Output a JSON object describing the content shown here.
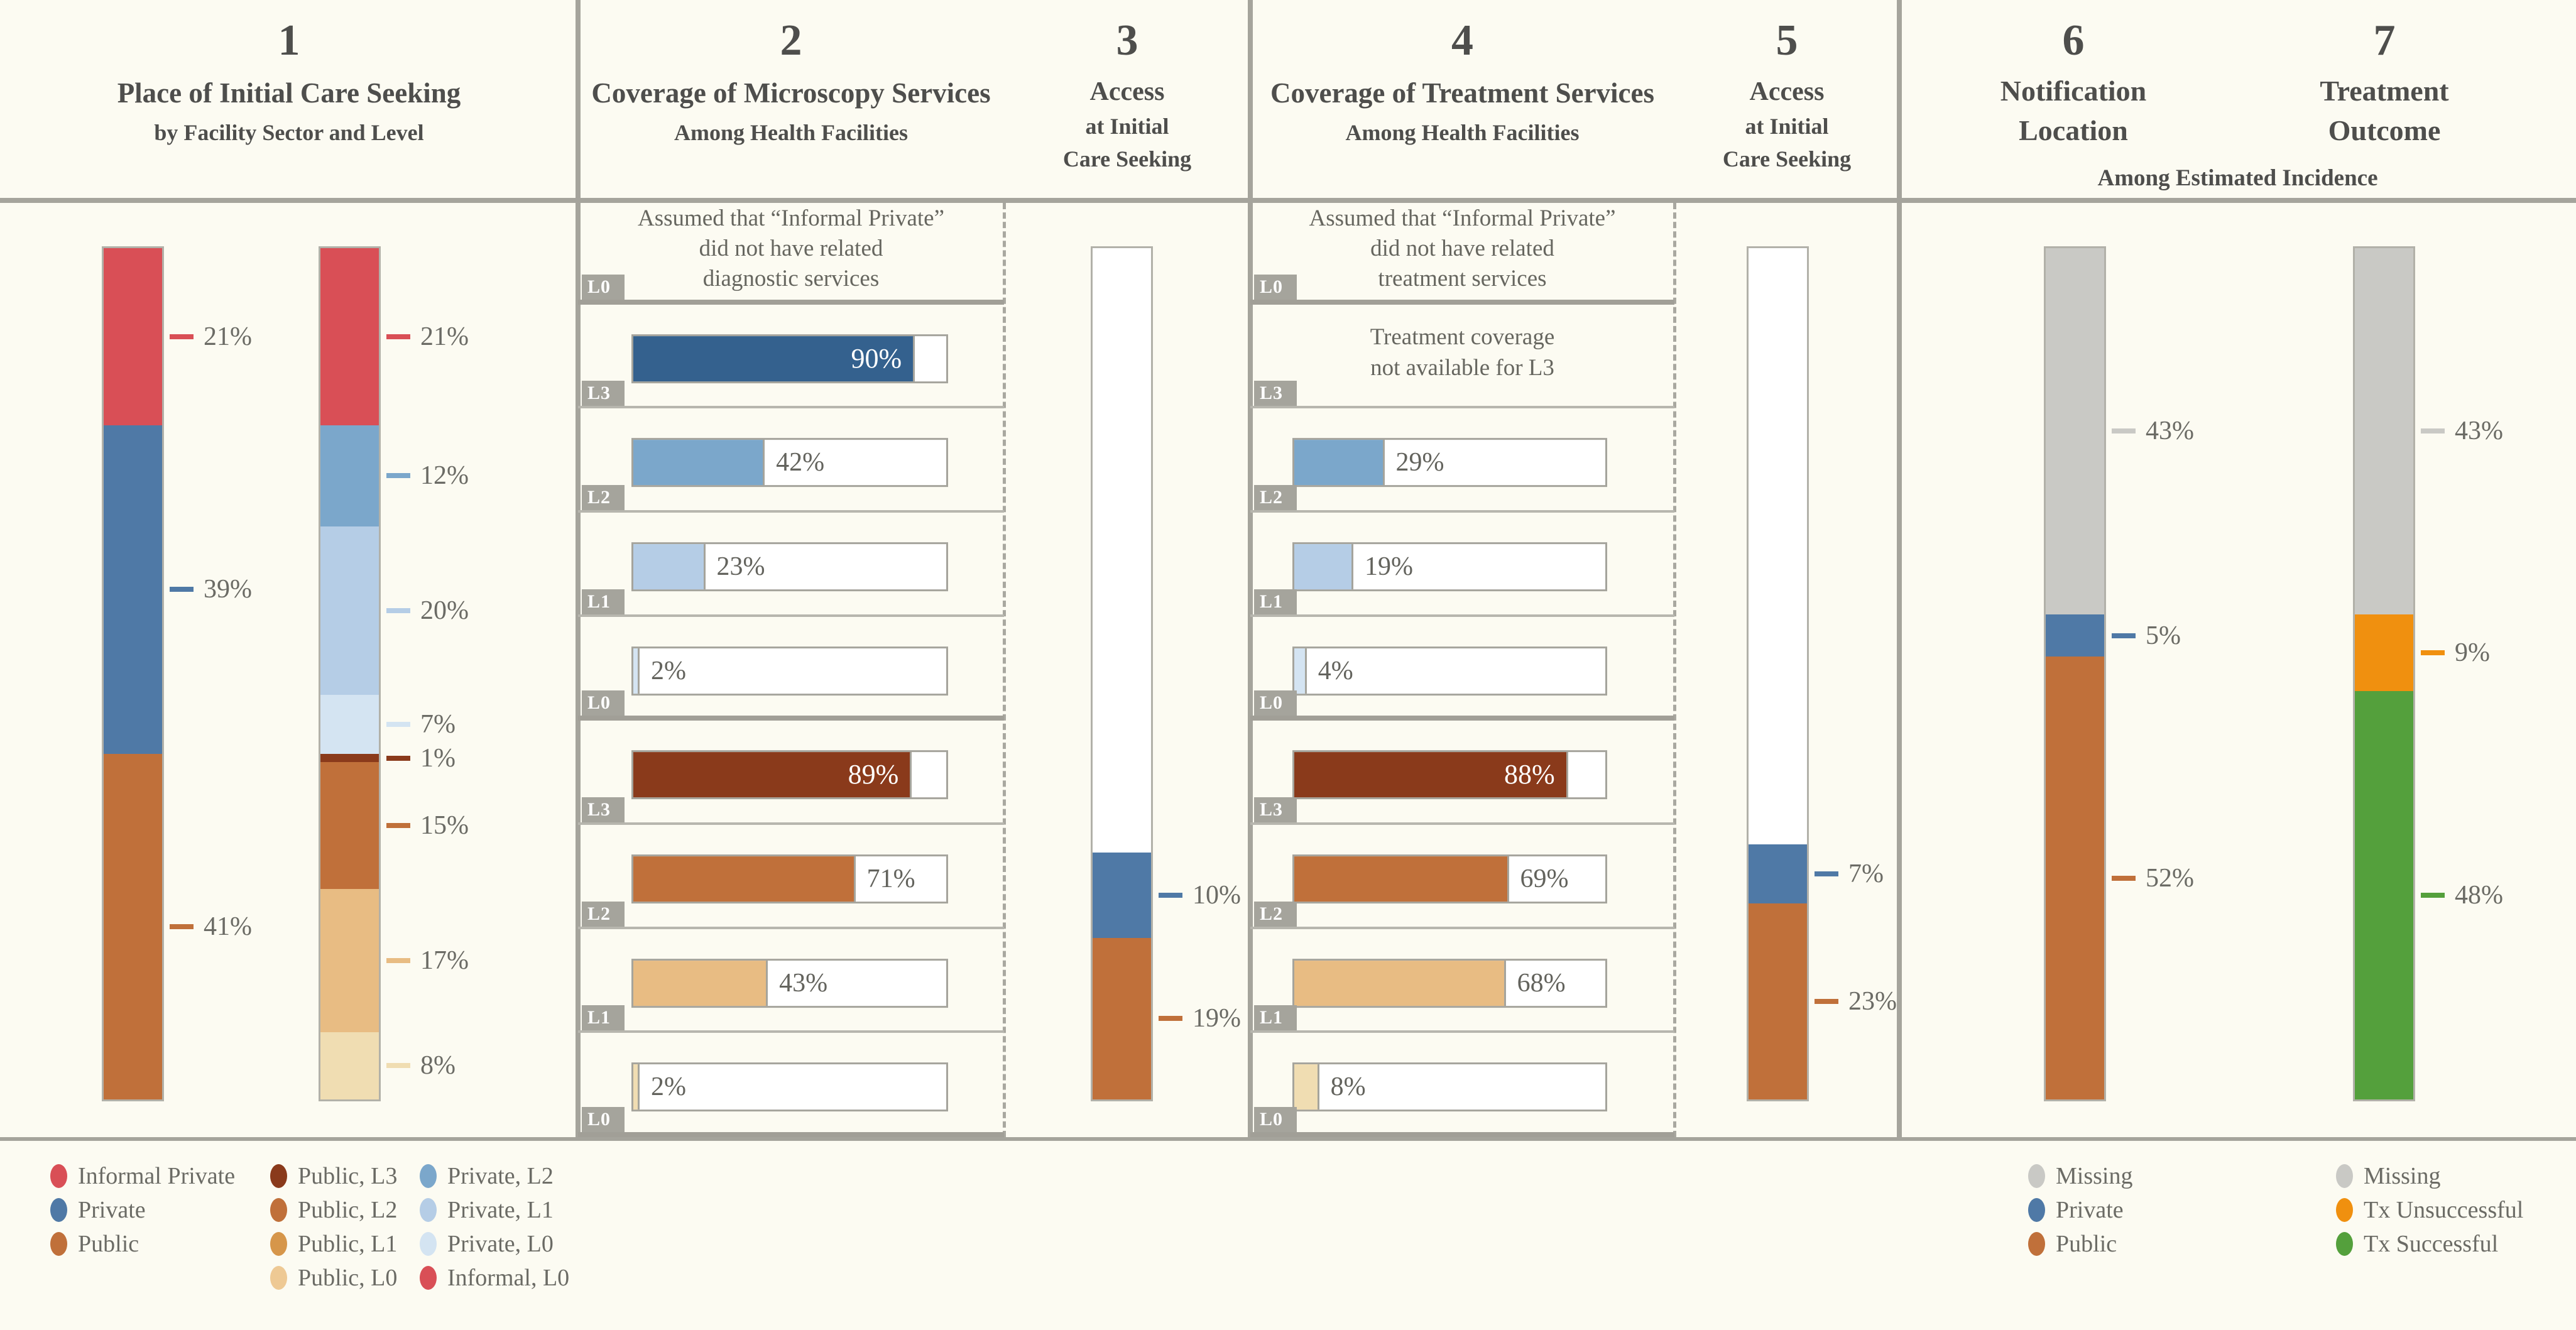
{
  "headers": {
    "p1": {
      "num": "1",
      "title": "Place of Initial Care Seeking",
      "subtitle": "by Facility Sector and Level"
    },
    "p2": {
      "num": "2",
      "title": "Coverage of Microscopy Services",
      "subtitle": "Among Health Facilities"
    },
    "p3": {
      "num": "3",
      "title": "Access",
      "line2": "at Initial",
      "line3": "Care Seeking"
    },
    "p4": {
      "num": "4",
      "title": "Coverage of Treatment Services",
      "subtitle": "Among Health Facilities"
    },
    "p5": {
      "num": "5",
      "title": "Access",
      "line2": "at Initial",
      "line3": "Care Seeking"
    },
    "p6": {
      "num": "6",
      "title_line1": "Notification",
      "title_line2": "Location"
    },
    "p7": {
      "num": "7",
      "title_line1": "Treatment",
      "title_line2": "Outcome"
    },
    "p67_subtitle": "Among Estimated Incidence"
  },
  "colors": {
    "informal_private": "#d94f56",
    "private": "#4f79a6",
    "public": "#c0703a",
    "private_l3": "#34618e",
    "private_l2": "#7ba7cb",
    "private_l1": "#b5cde6",
    "private_l0": "#d4e4f2",
    "public_l3": "#8a3a1b",
    "public_l2": "#c0703a",
    "public_l1": "#e8bc83",
    "public_l0": "#f0ddb2",
    "missing": "#c9c9c5",
    "tx_unsuccessful": "#f0900f",
    "tx_successful": "#54a03c",
    "line_grey": "#a5a49c"
  },
  "chart_data": [
    {
      "id": "place-of-initial-care-seeking-by-sector",
      "type": "bar",
      "stacked": true,
      "title": "Place of Initial Care Seeking by Facility Sector",
      "segments": [
        {
          "label": "Informal Private",
          "value": 21,
          "color": "#d94f56"
        },
        {
          "label": "Private",
          "value": 39,
          "color": "#4f79a6"
        },
        {
          "label": "Public",
          "value": 41,
          "color": "#c0703a"
        }
      ]
    },
    {
      "id": "place-of-initial-care-seeking-by-sector-level",
      "type": "bar",
      "stacked": true,
      "title": "Place of Initial Care Seeking by Facility Sector and Level",
      "segments": [
        {
          "label": "Informal, L0",
          "value": 21,
          "color": "#d94f56"
        },
        {
          "label": "Private, L2",
          "value": 12,
          "color": "#7ba7cb"
        },
        {
          "label": "Private, L1",
          "value": 20,
          "color": "#b5cde6"
        },
        {
          "label": "Private, L0",
          "value": 7,
          "color": "#d4e4f2"
        },
        {
          "label": "Public, L3",
          "value": 1,
          "color": "#8a3a1b"
        },
        {
          "label": "Public, L2",
          "value": 15,
          "color": "#c0703a"
        },
        {
          "label": "Public, L1",
          "value": 17,
          "color": "#e8bc83"
        },
        {
          "label": "Public, L0",
          "value": 8,
          "color": "#f0ddb2"
        }
      ]
    },
    {
      "id": "microscopy-coverage",
      "type": "hbar",
      "title": "Coverage of Microscopy Services Among Health Facilities",
      "rows": [
        {
          "tag": "L0",
          "kind": "note",
          "text": "Assumed that “Informal Private”\ndid not have related\ndiagnostic services",
          "thick_line": true
        },
        {
          "tag": "L3",
          "kind": "bar",
          "series": "Private",
          "value": 90,
          "color": "#34618e",
          "label_inside": true
        },
        {
          "tag": "L2",
          "kind": "bar",
          "series": "Private",
          "value": 42,
          "color": "#7ba7cb"
        },
        {
          "tag": "L1",
          "kind": "bar",
          "series": "Private",
          "value": 23,
          "color": "#b5cde6"
        },
        {
          "tag": "L0",
          "kind": "bar",
          "series": "Private",
          "value": 2,
          "color": "#d4e4f2",
          "thick_line": true
        },
        {
          "tag": "L3",
          "kind": "bar",
          "series": "Public",
          "value": 89,
          "color": "#8a3a1b",
          "label_inside": true
        },
        {
          "tag": "L2",
          "kind": "bar",
          "series": "Public",
          "value": 71,
          "color": "#c0703a"
        },
        {
          "tag": "L1",
          "kind": "bar",
          "series": "Public",
          "value": 43,
          "color": "#e8bc83"
        },
        {
          "tag": "L0",
          "kind": "bar",
          "series": "Public",
          "value": 2,
          "color": "#f0ddb2",
          "thick_line": true
        }
      ],
      "xlim": [
        0,
        100
      ]
    },
    {
      "id": "access-at-initial-care-seeking-diagnosis",
      "type": "bar",
      "stacked": true,
      "title": "Access at Initial Care Seeking (Microscopy)",
      "segments": [
        {
          "label": "No access",
          "value": 71,
          "color": "#ffffff",
          "filler": true
        },
        {
          "label": "Private",
          "value": 10,
          "color": "#4f79a6"
        },
        {
          "label": "Public",
          "value": 19,
          "color": "#c0703a"
        }
      ]
    },
    {
      "id": "treatment-coverage",
      "type": "hbar",
      "title": "Coverage of Treatment Services Among Health Facilities",
      "rows": [
        {
          "tag": "L0",
          "kind": "note",
          "text": "Assumed that “Informal Private”\ndid not have related\ntreatment services",
          "thick_line": true
        },
        {
          "tag": "L3",
          "kind": "note",
          "text": "Treatment coverage\nnot available for L3"
        },
        {
          "tag": "L2",
          "kind": "bar",
          "series": "Private",
          "value": 29,
          "color": "#7ba7cb"
        },
        {
          "tag": "L1",
          "kind": "bar",
          "series": "Private",
          "value": 19,
          "color": "#b5cde6"
        },
        {
          "tag": "L0",
          "kind": "bar",
          "series": "Private",
          "value": 4,
          "color": "#d4e4f2",
          "thick_line": true
        },
        {
          "tag": "L3",
          "kind": "bar",
          "series": "Public",
          "value": 88,
          "color": "#8a3a1b",
          "label_inside": true
        },
        {
          "tag": "L2",
          "kind": "bar",
          "series": "Public",
          "value": 69,
          "color": "#c0703a"
        },
        {
          "tag": "L1",
          "kind": "bar",
          "series": "Public",
          "value": 68,
          "color": "#e8bc83"
        },
        {
          "tag": "L0",
          "kind": "bar",
          "series": "Public",
          "value": 8,
          "color": "#f0ddb2",
          "thick_line": true
        }
      ],
      "xlim": [
        0,
        100
      ]
    },
    {
      "id": "access-at-initial-care-seeking-treatment",
      "type": "bar",
      "stacked": true,
      "title": "Access at Initial Care Seeking (Treatment)",
      "segments": [
        {
          "label": "No access",
          "value": 70,
          "color": "#ffffff",
          "filler": true
        },
        {
          "label": "Private",
          "value": 7,
          "color": "#4f79a6"
        },
        {
          "label": "Public",
          "value": 23,
          "color": "#c0703a"
        }
      ]
    },
    {
      "id": "notification-location",
      "type": "bar",
      "stacked": true,
      "title": "Notification Location Among Estimated Incidence",
      "segments": [
        {
          "label": "Missing",
          "value": 43,
          "color": "#c9c9c5"
        },
        {
          "label": "Private",
          "value": 5,
          "color": "#4f79a6"
        },
        {
          "label": "Public",
          "value": 52,
          "color": "#c0703a"
        }
      ]
    },
    {
      "id": "treatment-outcome",
      "type": "bar",
      "stacked": true,
      "title": "Treatment Outcome Among Estimated Incidence",
      "segments": [
        {
          "label": "Missing",
          "value": 43,
          "color": "#c9c9c5"
        },
        {
          "label": "Tx Unsuccessful",
          "value": 9,
          "color": "#f0900f"
        },
        {
          "label": "Tx Successful",
          "value": 48,
          "color": "#54a03c"
        }
      ]
    }
  ],
  "legends": {
    "care_seeking_sector": [
      {
        "label": "Informal Private",
        "color": "#d94f56"
      },
      {
        "label": "Private",
        "color": "#4f79a6"
      },
      {
        "label": "Public",
        "color": "#c0703a"
      }
    ],
    "care_seeking_public_levels": [
      {
        "label": "Public, L3",
        "color": "#8a3a1b"
      },
      {
        "label": "Public, L2",
        "color": "#c0703a"
      },
      {
        "label": "Public, L1",
        "color": "#d6964a"
      },
      {
        "label": "Public, L0",
        "color": "#eec994"
      }
    ],
    "care_seeking_private_levels": [
      {
        "label": "Private, L2",
        "color": "#7ba7cb"
      },
      {
        "label": "Private, L1",
        "color": "#b5cde6"
      },
      {
        "label": "Private, L0",
        "color": "#d4e4f2"
      },
      {
        "label": "Informal, L0",
        "color": "#d94f56"
      }
    ],
    "notification_location": [
      {
        "label": "Missing",
        "color": "#c9c9c5"
      },
      {
        "label": "Private",
        "color": "#4f79a6"
      },
      {
        "label": "Public",
        "color": "#c0703a"
      }
    ],
    "treatment_outcome": [
      {
        "label": "Missing",
        "color": "#c9c9c5"
      },
      {
        "label": "Tx Unsuccessful",
        "color": "#f0900f"
      },
      {
        "label": "Tx Successful",
        "color": "#54a03c"
      }
    ]
  }
}
